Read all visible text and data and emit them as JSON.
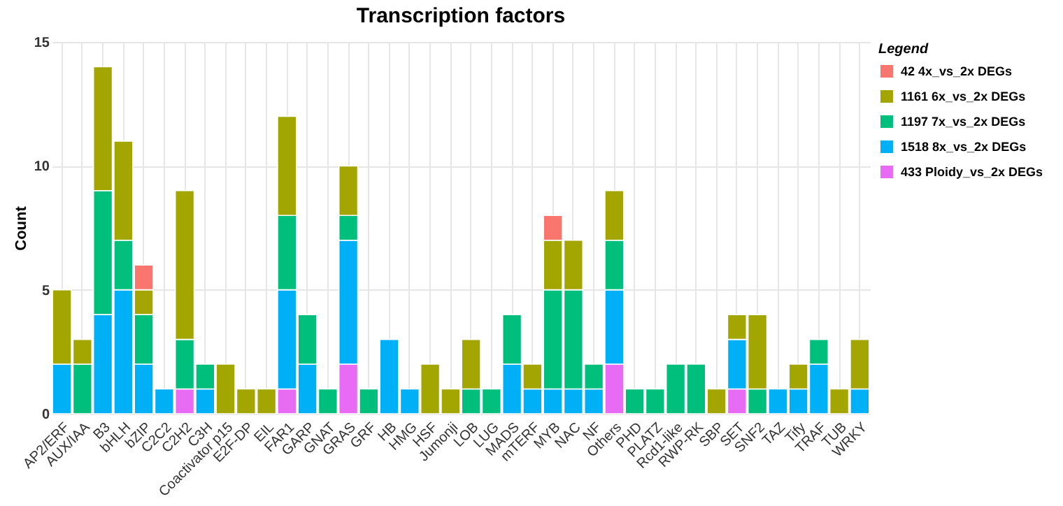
{
  "chart_data": {
    "type": "bar",
    "title": "Transcription factors",
    "ylabel": "Count",
    "legend_title": "Legend",
    "stacked": true,
    "grid": true,
    "legend": "right",
    "categories": [
      "AP2/ERF",
      "AUX/IAA",
      "B3",
      "bHLH",
      "bZIP",
      "C2C2",
      "C2H2",
      "C3H",
      "Coactivator p15",
      "E2F-DP",
      "EIL",
      "FAR1",
      "GARP",
      "GNAT",
      "GRAS",
      "GRF",
      "HB",
      "HMG",
      "HSF",
      "Jumonji",
      "LOB",
      "LUG",
      "MADS",
      "mTERF",
      "MYB",
      "NAC",
      "NF",
      "Others",
      "PHD",
      "PLATZ",
      "Rcd1-like",
      "RWP-RK",
      "SBP",
      "SET",
      "SNF2",
      "TAZ",
      "Tify",
      "TRAF",
      "TUB",
      "WRKY"
    ],
    "ylim": [
      0,
      15
    ],
    "yticks": [
      0,
      5,
      10,
      15
    ],
    "series": [
      {
        "name": "433 Ploidy_vs_2x DEGs",
        "color": "#e76bf3",
        "values": [
          null,
          null,
          null,
          null,
          null,
          null,
          1,
          null,
          null,
          null,
          null,
          1,
          null,
          null,
          2,
          null,
          null,
          null,
          null,
          null,
          null,
          null,
          null,
          null,
          null,
          null,
          null,
          2,
          null,
          null,
          null,
          null,
          null,
          1,
          null,
          null,
          null,
          null,
          null,
          null
        ]
      },
      {
        "name": "1518 8x_vs_2x DEGs",
        "color": "#00b0f6",
        "values": [
          2,
          null,
          4,
          5,
          2,
          1,
          null,
          1,
          null,
          null,
          null,
          4,
          2,
          null,
          5,
          null,
          3,
          1,
          null,
          null,
          null,
          null,
          2,
          1,
          1,
          1,
          1,
          3,
          null,
          null,
          null,
          null,
          null,
          2,
          null,
          1,
          1,
          2,
          null,
          1
        ]
      },
      {
        "name": "1197 7x_vs_2x DEGs",
        "color": "#00bf7d",
        "values": [
          null,
          2,
          5,
          2,
          2,
          null,
          2,
          1,
          null,
          null,
          null,
          3,
          2,
          1,
          1,
          1,
          null,
          null,
          null,
          null,
          1,
          1,
          2,
          null,
          4,
          4,
          1,
          2,
          1,
          1,
          2,
          2,
          null,
          null,
          1,
          null,
          null,
          1,
          null,
          null
        ]
      },
      {
        "name": "1161 6x_vs_2x DEGs",
        "color": "#a3a500",
        "values": [
          3,
          1,
          5,
          4,
          1,
          null,
          6,
          null,
          2,
          1,
          1,
          4,
          null,
          null,
          2,
          null,
          null,
          null,
          2,
          1,
          2,
          null,
          null,
          1,
          2,
          2,
          null,
          2,
          null,
          null,
          null,
          null,
          1,
          1,
          3,
          null,
          1,
          null,
          1,
          2
        ]
      },
      {
        "name": "42 4x_vs_2x DEGs",
        "color": "#f8766d",
        "values": [
          null,
          null,
          null,
          null,
          1,
          null,
          null,
          null,
          null,
          null,
          null,
          null,
          null,
          null,
          null,
          null,
          null,
          null,
          null,
          null,
          null,
          null,
          null,
          null,
          1,
          null,
          null,
          null,
          null,
          null,
          null,
          null,
          null,
          null,
          null,
          null,
          null,
          null,
          null,
          null
        ]
      }
    ]
  }
}
